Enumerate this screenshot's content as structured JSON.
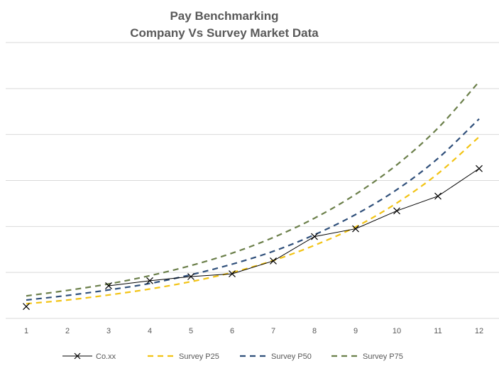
{
  "chart_data": {
    "type": "line",
    "title": "Pay Benchmarking",
    "subtitle": "Company Vs Survey Market Data",
    "xlabel": "",
    "ylabel": "",
    "x": [
      "1",
      "2",
      "3",
      "4",
      "5",
      "6",
      "7",
      "8",
      "9",
      "10",
      "11",
      "12"
    ],
    "ylim": [
      0,
      6
    ],
    "grid": true,
    "legend_position": "bottom",
    "series": [
      {
        "name": "Co.xx",
        "color": "#000000",
        "style": "solid-x-markers",
        "values": [
          0.26,
          null,
          0.71,
          0.82,
          0.91,
          0.97,
          1.25,
          1.78,
          1.95,
          2.34,
          2.66,
          3.26
        ]
      },
      {
        "name": "Survey P25",
        "color": "#F2C314",
        "style": "dashed",
        "values": [
          0.32,
          0.4,
          0.51,
          0.64,
          0.8,
          1.0,
          1.26,
          1.59,
          1.99,
          2.51,
          3.15,
          3.95
        ]
      },
      {
        "name": "Survey P50",
        "color": "#2F4F7A",
        "style": "dashed",
        "values": [
          0.4,
          0.5,
          0.62,
          0.76,
          0.95,
          1.18,
          1.46,
          1.82,
          2.26,
          2.8,
          3.48,
          4.34
        ]
      },
      {
        "name": "Survey P75",
        "color": "#6B7F4A",
        "style": "dashed",
        "values": [
          0.49,
          0.61,
          0.75,
          0.93,
          1.15,
          1.42,
          1.76,
          2.18,
          2.7,
          3.34,
          4.14,
          5.15
        ]
      }
    ]
  }
}
